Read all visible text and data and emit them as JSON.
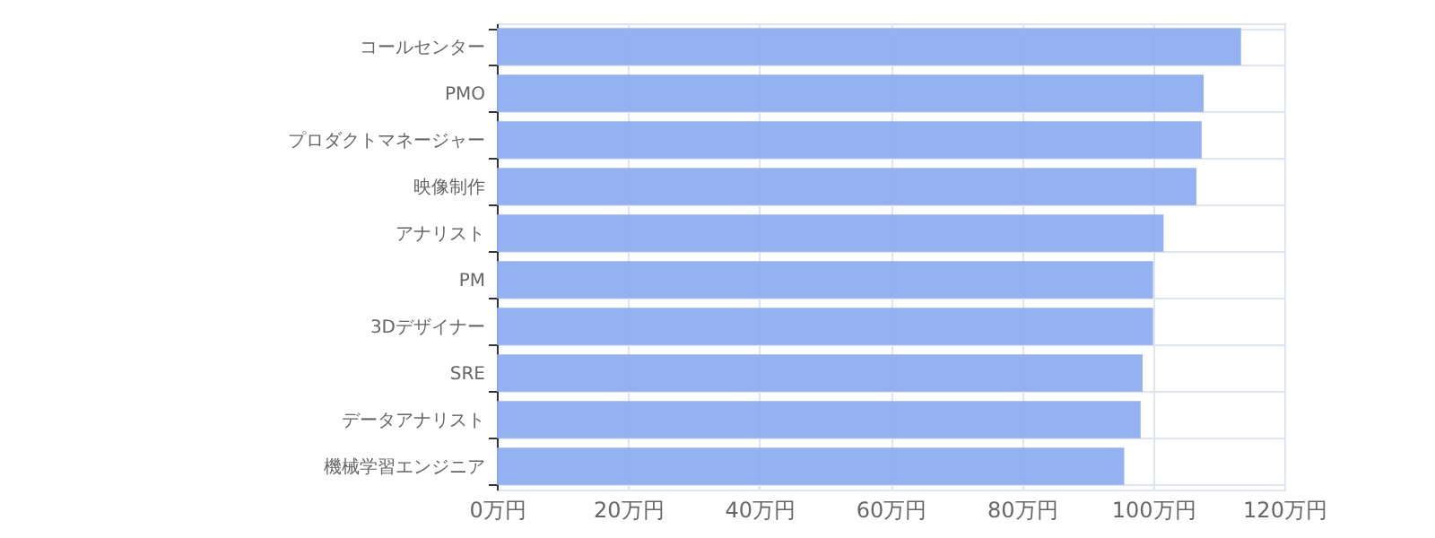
{
  "chart_data": {
    "type": "bar",
    "orientation": "horizontal",
    "categories": [
      "コールセンター",
      "PMO",
      "プロダクトマネージャー",
      "映像制作",
      "アナリスト",
      "PM",
      "3Dデザイナー",
      "SRE",
      "データアナリスト",
      "機械学習エンジニア"
    ],
    "values": [
      113.4,
      107.7,
      107.4,
      106.6,
      101.6,
      100,
      100,
      98.4,
      98.1,
      95.6
    ],
    "color": "#8eaef0",
    "xlim": [
      0,
      120
    ],
    "xticks": [
      {
        "value": 0,
        "label": "0万円"
      },
      {
        "value": 20,
        "label": "20万円"
      },
      {
        "value": 40,
        "label": "40万円"
      },
      {
        "value": 60,
        "label": "60万円"
      },
      {
        "value": 80,
        "label": "80万円"
      },
      {
        "value": 100,
        "label": "100万円"
      },
      {
        "value": 120,
        "label": "120万円"
      }
    ],
    "grid": true
  }
}
